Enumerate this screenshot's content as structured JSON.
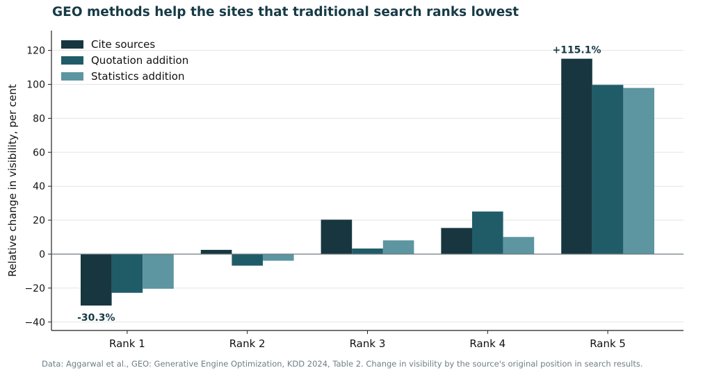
{
  "title": "GEO methods help the sites that traditional search ranks lowest",
  "source": "Data: Aggarwal et al., GEO: Generative Engine Optimization, KDD 2024, Table 2. Change in visibility by the source's original position in search results.",
  "colors": {
    "cite_sources": "#173640",
    "quotation_addition": "#205c68",
    "statistics_addition": "#5d95a1",
    "title": "#173a46",
    "grid": "#e3e3e3",
    "zero_line": "#6c7b80"
  },
  "chart_data": {
    "type": "bar",
    "categories": [
      "Rank 1",
      "Rank 2",
      "Rank 3",
      "Rank 4",
      "Rank 5"
    ],
    "series": [
      {
        "name": "Cite sources",
        "values": [
          -30.3,
          2.5,
          20.3,
          15.4,
          115.1
        ]
      },
      {
        "name": "Quotation addition",
        "values": [
          -22.8,
          -6.8,
          3.3,
          25.1,
          99.7
        ]
      },
      {
        "name": "Statistics addition",
        "values": [
          -20.4,
          -3.9,
          8.1,
          10.1,
          97.9
        ]
      }
    ],
    "ylabel": "Relative change in visibility, per cent",
    "xlabel": "",
    "ylim": [
      -45,
      132
    ],
    "yticks": [
      -40,
      -20,
      0,
      20,
      40,
      60,
      80,
      100,
      120
    ],
    "ytick_labels": [
      "−40",
      "−20",
      "0",
      "20",
      "40",
      "60",
      "80",
      "100",
      "120"
    ],
    "grid": true,
    "legend_position": "top-left",
    "annotations": [
      {
        "text": "-30.3%",
        "category": "Rank 1",
        "series": "Cite sources",
        "value": -30.3
      },
      {
        "text": "+115.1%",
        "category": "Rank 5",
        "series": "Cite sources",
        "value": 115.1
      }
    ]
  }
}
